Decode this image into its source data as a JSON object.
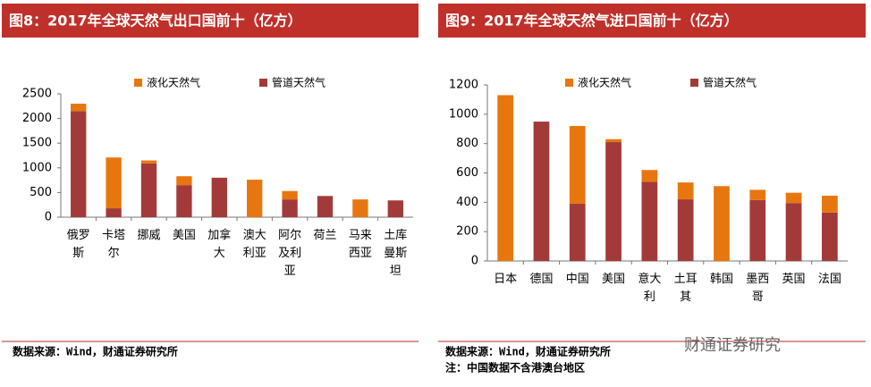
{
  "chart_data": [
    {
      "type": "stacked-bar",
      "title": "图8：2017年全球天然气出口国前十（亿方）",
      "categories": [
        "俄罗斯",
        "卡塔尔",
        "挪威",
        "美国",
        "加拿大",
        "澳大利亚",
        "阿尔及利亚",
        "荷兰",
        "马来西亚",
        "土库曼斯坦"
      ],
      "series": [
        {
          "name": "管道天然气",
          "color": "#a33a3a",
          "values": [
            2150,
            180,
            1090,
            650,
            800,
            0,
            360,
            430,
            0,
            340
          ]
        },
        {
          "name": "液化天然气",
          "color": "#e8760f",
          "values": [
            150,
            1030,
            60,
            180,
            0,
            760,
            170,
            0,
            360,
            0
          ]
        }
      ],
      "legend_order": [
        1,
        0
      ],
      "ylim": [
        0,
        2500
      ],
      "yticks": [
        0,
        500,
        1000,
        1500,
        2000,
        2500
      ],
      "source": "数据来源：Wind，财通证券研究所"
    },
    {
      "type": "stacked-bar",
      "title": "图9：2017年全球天然气进口国前十（亿方）",
      "categories": [
        "日本",
        "德国",
        "中国",
        "美国",
        "意大利",
        "土耳其",
        "韩国",
        "墨西哥",
        "英国",
        "法国"
      ],
      "series": [
        {
          "name": "管道天然气",
          "color": "#a33a3a",
          "values": [
            0,
            950,
            390,
            810,
            540,
            420,
            0,
            415,
            395,
            330
          ]
        },
        {
          "name": "液化天然气",
          "color": "#e8760f",
          "values": [
            1130,
            0,
            530,
            20,
            80,
            115,
            510,
            70,
            70,
            115
          ]
        }
      ],
      "legend_order": [
        1,
        0
      ],
      "ylim": [
        0,
        1200
      ],
      "yticks": [
        0,
        200,
        400,
        600,
        800,
        1000,
        1200
      ],
      "source": "数据来源：Wind，财通证券研究所",
      "note": "注：中国数据不含港澳台地区"
    }
  ],
  "watermark": "财通证券研究"
}
